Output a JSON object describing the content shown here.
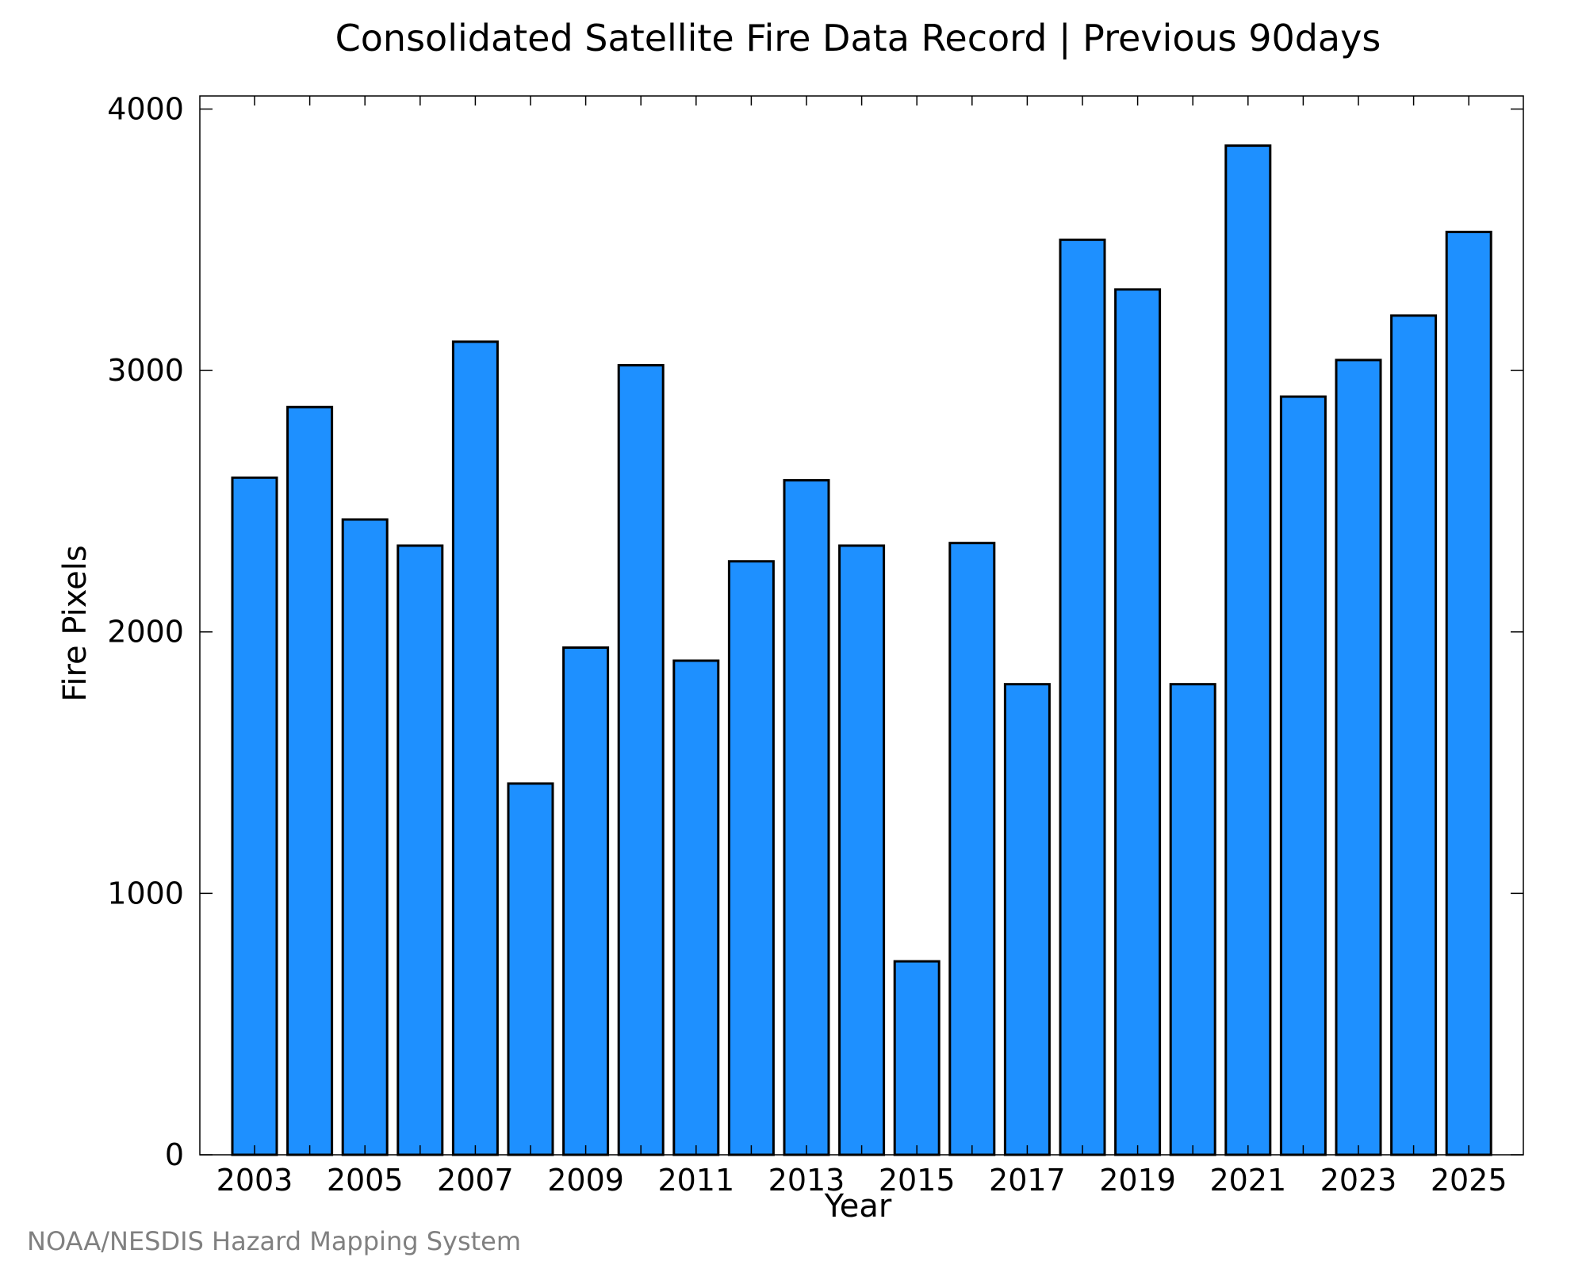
{
  "chart_data": {
    "type": "bar",
    "title": "Consolidated Satellite Fire Data Record | Previous 90days",
    "xlabel": "Year",
    "ylabel": "Fire Pixels",
    "ylim": [
      0,
      4050
    ],
    "yticks": [
      0,
      1000,
      2000,
      3000,
      4000
    ],
    "xtick_labels": [
      "2003",
      "2005",
      "2007",
      "2009",
      "2011",
      "2013",
      "2015",
      "2017",
      "2019",
      "2021",
      "2023",
      "2025"
    ],
    "categories": [
      "2003",
      "2004",
      "2005",
      "2006",
      "2007",
      "2008",
      "2009",
      "2010",
      "2011",
      "2012",
      "2013",
      "2014",
      "2015",
      "2016",
      "2017",
      "2018",
      "2019",
      "2020",
      "2021",
      "2022",
      "2023",
      "2024",
      "2025"
    ],
    "values": [
      2590,
      2860,
      2430,
      2330,
      3110,
      1420,
      1940,
      3020,
      1890,
      2270,
      2580,
      2330,
      740,
      2340,
      1800,
      3500,
      3310,
      1800,
      3860,
      2900,
      3040,
      3210,
      3530
    ],
    "bar_color": "#1e90ff",
    "edge_color": "#000000",
    "grid": false,
    "legend": "none"
  },
  "footer": {
    "credit": "NOAA/NESDIS Hazard Mapping System"
  }
}
